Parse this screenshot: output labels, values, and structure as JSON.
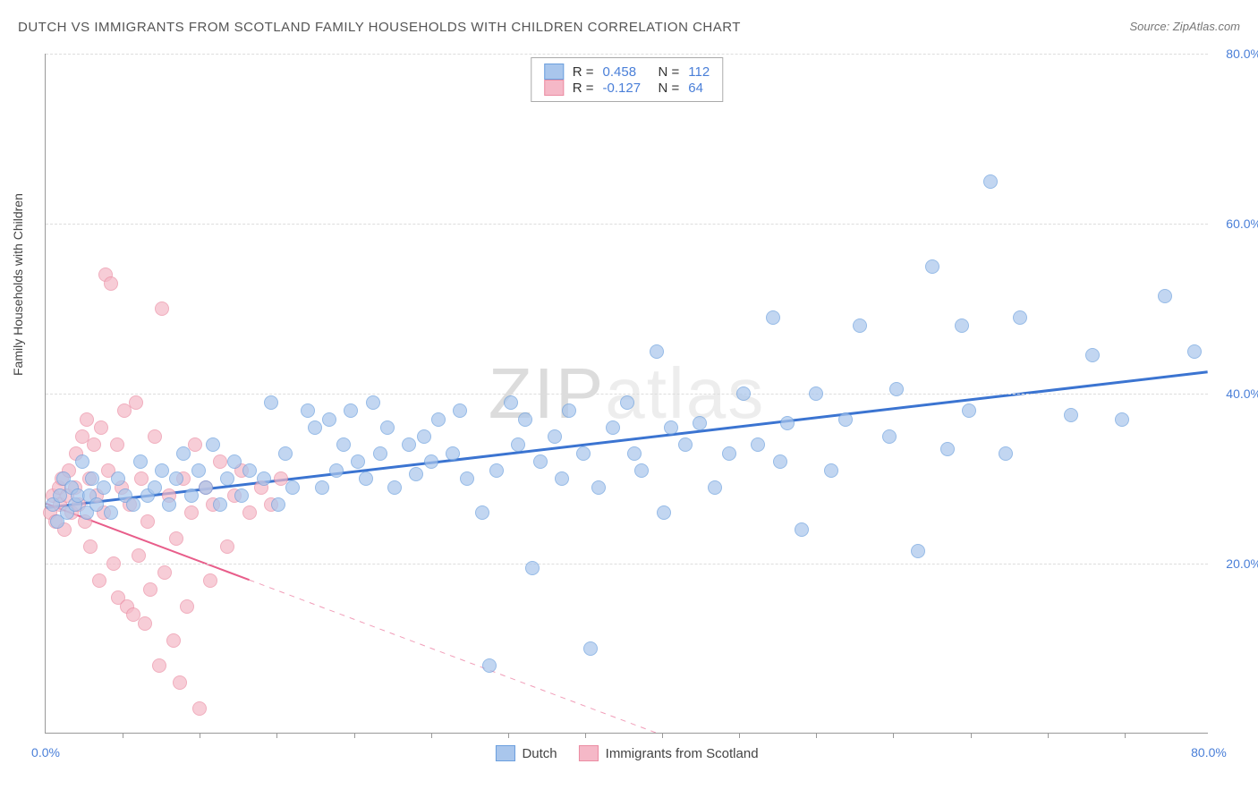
{
  "title": "DUTCH VS IMMIGRANTS FROM SCOTLAND FAMILY HOUSEHOLDS WITH CHILDREN CORRELATION CHART",
  "source": "Source: ZipAtlas.com",
  "ylabel": "Family Households with Children",
  "watermark_a": "ZIP",
  "watermark_b": "atlas",
  "xlim": [
    0,
    80
  ],
  "ylim": [
    0,
    80
  ],
  "y_ticks": [
    20,
    40,
    60,
    80
  ],
  "x_ticks_labeled": [
    0,
    80
  ],
  "x_tick_marks": [
    5.3,
    10.6,
    15.9,
    21.2,
    26.5,
    31.8,
    37.1,
    42.4,
    47.7,
    53.0,
    58.3,
    63.6,
    68.9,
    74.2
  ],
  "series": {
    "blue": {
      "label": "Dutch",
      "color_fill": "#a9c6ec",
      "color_stroke": "#6b9fde",
      "opacity": 0.7,
      "radius": 8,
      "R": "0.458",
      "N": "112",
      "trend": {
        "x1": 0,
        "y1": 26.5,
        "x2": 80,
        "y2": 42.5,
        "solid_until_x": 80,
        "color": "#3b74d1",
        "width": 3
      },
      "points": [
        [
          0.5,
          27
        ],
        [
          0.8,
          25
        ],
        [
          1,
          28
        ],
        [
          1.2,
          30
        ],
        [
          1.5,
          26
        ],
        [
          1.8,
          29
        ],
        [
          2,
          27
        ],
        [
          2.2,
          28
        ],
        [
          2.5,
          32
        ],
        [
          2.8,
          26
        ],
        [
          3,
          28
        ],
        [
          3.2,
          30
        ],
        [
          3.5,
          27
        ],
        [
          4,
          29
        ],
        [
          4.5,
          26
        ],
        [
          5,
          30
        ],
        [
          5.5,
          28
        ],
        [
          6,
          27
        ],
        [
          6.5,
          32
        ],
        [
          7,
          28
        ],
        [
          7.5,
          29
        ],
        [
          8,
          31
        ],
        [
          8.5,
          27
        ],
        [
          9,
          30
        ],
        [
          9.5,
          33
        ],
        [
          10,
          28
        ],
        [
          10.5,
          31
        ],
        [
          11,
          29
        ],
        [
          11.5,
          34
        ],
        [
          12,
          27
        ],
        [
          12.5,
          30
        ],
        [
          13,
          32
        ],
        [
          13.5,
          28
        ],
        [
          14,
          31
        ],
        [
          15,
          30
        ],
        [
          15.5,
          39
        ],
        [
          16,
          27
        ],
        [
          16.5,
          33
        ],
        [
          17,
          29
        ],
        [
          18,
          38
        ],
        [
          18.5,
          36
        ],
        [
          19,
          29
        ],
        [
          19.5,
          37
        ],
        [
          20,
          31
        ],
        [
          20.5,
          34
        ],
        [
          21,
          38
        ],
        [
          21.5,
          32
        ],
        [
          22,
          30
        ],
        [
          22.5,
          39
        ],
        [
          23,
          33
        ],
        [
          23.5,
          36
        ],
        [
          24,
          29
        ],
        [
          25,
          34
        ],
        [
          25.5,
          30.5
        ],
        [
          26,
          35
        ],
        [
          26.5,
          32
        ],
        [
          27,
          37
        ],
        [
          28,
          33
        ],
        [
          28.5,
          38
        ],
        [
          29,
          30
        ],
        [
          30,
          26
        ],
        [
          30.5,
          8
        ],
        [
          31,
          31
        ],
        [
          32,
          39
        ],
        [
          32.5,
          34
        ],
        [
          33,
          37
        ],
        [
          33.5,
          19.5
        ],
        [
          34,
          32
        ],
        [
          35,
          35
        ],
        [
          35.5,
          30
        ],
        [
          36,
          38
        ],
        [
          37,
          33
        ],
        [
          37.5,
          10
        ],
        [
          38,
          29
        ],
        [
          39,
          36
        ],
        [
          40,
          39
        ],
        [
          40.5,
          33
        ],
        [
          41,
          31
        ],
        [
          42,
          45
        ],
        [
          42.5,
          26
        ],
        [
          43,
          36
        ],
        [
          44,
          34
        ],
        [
          45,
          36.5
        ],
        [
          46,
          29
        ],
        [
          47,
          33
        ],
        [
          48,
          40
        ],
        [
          49,
          34
        ],
        [
          50,
          49
        ],
        [
          50.5,
          32
        ],
        [
          51,
          36.5
        ],
        [
          52,
          24
        ],
        [
          53,
          40
        ],
        [
          54,
          31
        ],
        [
          55,
          37
        ],
        [
          56,
          48
        ],
        [
          58,
          35
        ],
        [
          58.5,
          40.5
        ],
        [
          60,
          21.5
        ],
        [
          61,
          55
        ],
        [
          62,
          33.5
        ],
        [
          63,
          48
        ],
        [
          63.5,
          38
        ],
        [
          65,
          65
        ],
        [
          66,
          33
        ],
        [
          67,
          49
        ],
        [
          70.5,
          37.5
        ],
        [
          72,
          44.5
        ],
        [
          74,
          37
        ],
        [
          77,
          51.5
        ],
        [
          79,
          45
        ]
      ]
    },
    "pink": {
      "label": "Immigrants from Scotland",
      "color_fill": "#f5b8c7",
      "color_stroke": "#eb8da3",
      "opacity": 0.7,
      "radius": 8,
      "R": "-0.127",
      "N": "64",
      "trend": {
        "x1": 0,
        "y1": 27,
        "x2": 42,
        "y2": 0,
        "solid_until_x": 14,
        "color": "#e85d8a",
        "width": 2
      },
      "points": [
        [
          0.3,
          26
        ],
        [
          0.5,
          28
        ],
        [
          0.7,
          25
        ],
        [
          0.9,
          29
        ],
        [
          1,
          27
        ],
        [
          1.1,
          30
        ],
        [
          1.3,
          24
        ],
        [
          1.5,
          28
        ],
        [
          1.6,
          31
        ],
        [
          1.8,
          26
        ],
        [
          2,
          29
        ],
        [
          2.1,
          33
        ],
        [
          2.3,
          27
        ],
        [
          2.5,
          35
        ],
        [
          2.7,
          25
        ],
        [
          2.8,
          37
        ],
        [
          3,
          30
        ],
        [
          3.1,
          22
        ],
        [
          3.3,
          34
        ],
        [
          3.5,
          28
        ],
        [
          3.7,
          18
        ],
        [
          3.8,
          36
        ],
        [
          4,
          26
        ],
        [
          4.1,
          54
        ],
        [
          4.3,
          31
        ],
        [
          4.5,
          53
        ],
        [
          4.7,
          20
        ],
        [
          4.9,
          34
        ],
        [
          5,
          16
        ],
        [
          5.2,
          29
        ],
        [
          5.4,
          38
        ],
        [
          5.6,
          15
        ],
        [
          5.8,
          27
        ],
        [
          6,
          14
        ],
        [
          6.2,
          39
        ],
        [
          6.4,
          21
        ],
        [
          6.6,
          30
        ],
        [
          6.8,
          13
        ],
        [
          7,
          25
        ],
        [
          7.2,
          17
        ],
        [
          7.5,
          35
        ],
        [
          7.8,
          8
        ],
        [
          8,
          50
        ],
        [
          8.2,
          19
        ],
        [
          8.5,
          28
        ],
        [
          8.8,
          11
        ],
        [
          9,
          23
        ],
        [
          9.2,
          6
        ],
        [
          9.5,
          30
        ],
        [
          9.7,
          15
        ],
        [
          10,
          26
        ],
        [
          10.3,
          34
        ],
        [
          10.6,
          3
        ],
        [
          11,
          29
        ],
        [
          11.3,
          18
        ],
        [
          11.5,
          27
        ],
        [
          12,
          32
        ],
        [
          12.5,
          22
        ],
        [
          13,
          28
        ],
        [
          13.5,
          31
        ],
        [
          14,
          26
        ],
        [
          14.8,
          29
        ],
        [
          15.5,
          27
        ],
        [
          16.2,
          30
        ]
      ]
    }
  },
  "legend_box_rows": [
    {
      "swatch_fill": "#a9c6ec",
      "swatch_stroke": "#6b9fde",
      "r_label": "R =",
      "r_val": "0.458",
      "n_label": "N =",
      "n_val": "112"
    },
    {
      "swatch_fill": "#f5b8c7",
      "swatch_stroke": "#eb8da3",
      "r_label": "R =",
      "r_val": "-0.127",
      "n_label": "N =",
      "n_val": "64"
    }
  ]
}
